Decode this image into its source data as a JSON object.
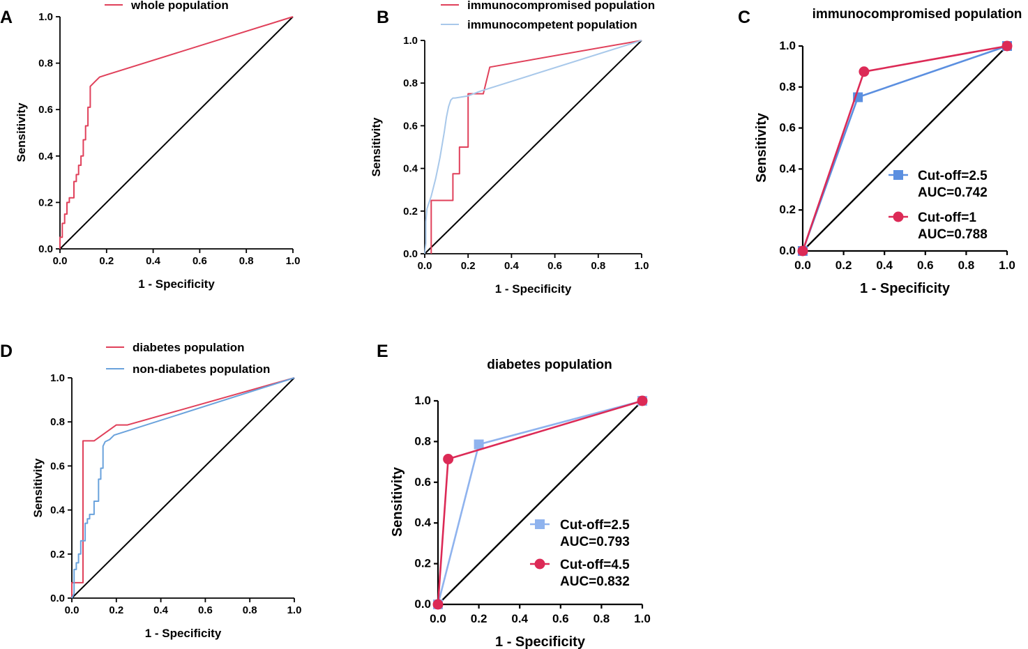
{
  "chart_data": [
    {
      "id": "A",
      "panel_label": "A",
      "type": "line",
      "title": "",
      "xlabel": "1 - Specificity",
      "ylabel": "Sensitivity",
      "xlim": [
        0,
        1
      ],
      "ylim": [
        0,
        1
      ],
      "xticks": [
        "0.0",
        "0.2",
        "0.4",
        "0.6",
        "0.8",
        "1.0"
      ],
      "yticks": [
        "0.0",
        "0.2",
        "0.4",
        "0.6",
        "0.8",
        "1.0"
      ],
      "reference_line": true,
      "series": [
        {
          "name": "whole population",
          "color": "#e0405a",
          "marker": "none",
          "x": [
            0,
            0,
            0.01,
            0.01,
            0.02,
            0.02,
            0.03,
            0.03,
            0.04,
            0.04,
            0.06,
            0.06,
            0.07,
            0.07,
            0.08,
            0.08,
            0.09,
            0.09,
            0.1,
            0.1,
            0.11,
            0.11,
            0.12,
            0.12,
            0.13,
            0.13,
            0.15,
            0.17,
            0.2,
            1.0
          ],
          "y": [
            0,
            0.05,
            0.05,
            0.11,
            0.11,
            0.15,
            0.15,
            0.2,
            0.2,
            0.22,
            0.22,
            0.29,
            0.29,
            0.32,
            0.32,
            0.36,
            0.36,
            0.4,
            0.4,
            0.47,
            0.47,
            0.53,
            0.53,
            0.61,
            0.61,
            0.7,
            0.72,
            0.74,
            0.75,
            1.0
          ]
        }
      ]
    },
    {
      "id": "B",
      "panel_label": "B",
      "type": "line",
      "title": "",
      "xlabel": "1 - Specificity",
      "ylabel": "Sensitivity",
      "xlim": [
        0,
        1
      ],
      "ylim": [
        0,
        1
      ],
      "xticks": [
        "0.0",
        "0.2",
        "0.4",
        "0.6",
        "0.8",
        "1.0"
      ],
      "yticks": [
        "0.0",
        "0.2",
        "0.4",
        "0.6",
        "0.8",
        "1.0"
      ],
      "reference_line": true,
      "series": [
        {
          "name": "immunocompromised population",
          "color": "#e0405a",
          "marker": "none",
          "x": [
            0.03,
            0.03,
            0.13,
            0.13,
            0.16,
            0.16,
            0.2,
            0.2,
            0.27,
            0.3,
            1.0
          ],
          "y": [
            0,
            0.25,
            0.25,
            0.375,
            0.375,
            0.5,
            0.5,
            0.75,
            0.75,
            0.875,
            1.0
          ]
        },
        {
          "name": "immunocompetent population",
          "color": "#a8c8ea",
          "marker": "none",
          "x": [
            0,
            0.005,
            0.005,
            0.01,
            0.02,
            0.03,
            0.04,
            0.05,
            0.06,
            0.07,
            0.08,
            0.09,
            0.1,
            0.11,
            0.12,
            0.13,
            0.14,
            0.2,
            0.25,
            1.0
          ],
          "y": [
            0,
            0.05,
            0.15,
            0.21,
            0.24,
            0.27,
            0.31,
            0.35,
            0.4,
            0.45,
            0.51,
            0.57,
            0.64,
            0.69,
            0.72,
            0.73,
            0.73,
            0.74,
            0.76,
            1.0
          ]
        }
      ]
    },
    {
      "id": "C",
      "panel_label": "C",
      "type": "line",
      "title": "immunocompromised population",
      "xlabel": "1 - Specificity",
      "ylabel": "Sensitivity",
      "xlim": [
        0,
        1
      ],
      "ylim": [
        0,
        1
      ],
      "xticks": [
        "0.0",
        "0.2",
        "0.4",
        "0.6",
        "0.8",
        "1.0"
      ],
      "yticks": [
        "0.0",
        "0.2",
        "0.4",
        "0.6",
        "0.8",
        "1.0"
      ],
      "reference_line": true,
      "series": [
        {
          "name": "Cut-off=2.5",
          "auc": "AUC=0.742",
          "color": "#5b8fe0",
          "marker": "square",
          "x": [
            0,
            0.27,
            1.0
          ],
          "y": [
            0,
            0.75,
            1.0
          ]
        },
        {
          "name": "Cut-off=1",
          "auc": "AUC=0.788",
          "color": "#dc2a56",
          "marker": "circle",
          "x": [
            0,
            0.3,
            1.0
          ],
          "y": [
            0,
            0.875,
            1.0
          ]
        }
      ]
    },
    {
      "id": "D",
      "panel_label": "D",
      "type": "line",
      "title": "",
      "xlabel": "1 - Specificity",
      "ylabel": "Sensitivity",
      "xlim": [
        0,
        1
      ],
      "ylim": [
        0,
        1
      ],
      "xticks": [
        "0.0",
        "0.2",
        "0.4",
        "0.6",
        "0.8",
        "1.0"
      ],
      "yticks": [
        "0.0",
        "0.2",
        "0.4",
        "0.6",
        "0.8",
        "1.0"
      ],
      "reference_line": true,
      "series": [
        {
          "name": "diabetes population",
          "color": "#e0405a",
          "marker": "none",
          "x": [
            0,
            0,
            0.05,
            0.05,
            0.1,
            0.2,
            0.25,
            1.0
          ],
          "y": [
            0,
            0.07,
            0.07,
            0.714,
            0.714,
            0.786,
            0.786,
            1.0
          ]
        },
        {
          "name": "non-diabetes population",
          "color": "#6aa2dc",
          "marker": "none",
          "x": [
            0,
            0.01,
            0.01,
            0.02,
            0.02,
            0.03,
            0.03,
            0.04,
            0.04,
            0.06,
            0.06,
            0.07,
            0.07,
            0.08,
            0.08,
            0.1,
            0.1,
            0.12,
            0.12,
            0.13,
            0.13,
            0.14,
            0.14,
            0.15,
            0.17,
            0.19,
            1.0
          ],
          "y": [
            0,
            0.02,
            0.13,
            0.13,
            0.16,
            0.16,
            0.2,
            0.2,
            0.26,
            0.26,
            0.34,
            0.34,
            0.36,
            0.36,
            0.38,
            0.38,
            0.44,
            0.44,
            0.54,
            0.54,
            0.59,
            0.59,
            0.69,
            0.71,
            0.72,
            0.74,
            1.0
          ]
        }
      ]
    },
    {
      "id": "E",
      "panel_label": "E",
      "type": "line",
      "title": "diabetes population",
      "xlabel": "1 - Specificity",
      "ylabel": "Sensitivity",
      "xlim": [
        0,
        1
      ],
      "ylim": [
        0,
        1
      ],
      "xticks": [
        "0.0",
        "0.2",
        "0.4",
        "0.6",
        "0.8",
        "1.0"
      ],
      "yticks": [
        "0.0",
        "0.2",
        "0.4",
        "0.6",
        "0.8",
        "1.0"
      ],
      "reference_line": true,
      "series": [
        {
          "name": "Cut-off=2.5",
          "auc": "AUC=0.793",
          "color": "#8fb3ee",
          "marker": "square",
          "x": [
            0,
            0.2,
            1.0
          ],
          "y": [
            0,
            0.786,
            1.0
          ]
        },
        {
          "name": "Cut-off=4.5",
          "auc": "AUC=0.832",
          "color": "#dc2a56",
          "marker": "circle",
          "x": [
            0,
            0.05,
            1.0
          ],
          "y": [
            0,
            0.714,
            1.0
          ]
        }
      ]
    }
  ]
}
